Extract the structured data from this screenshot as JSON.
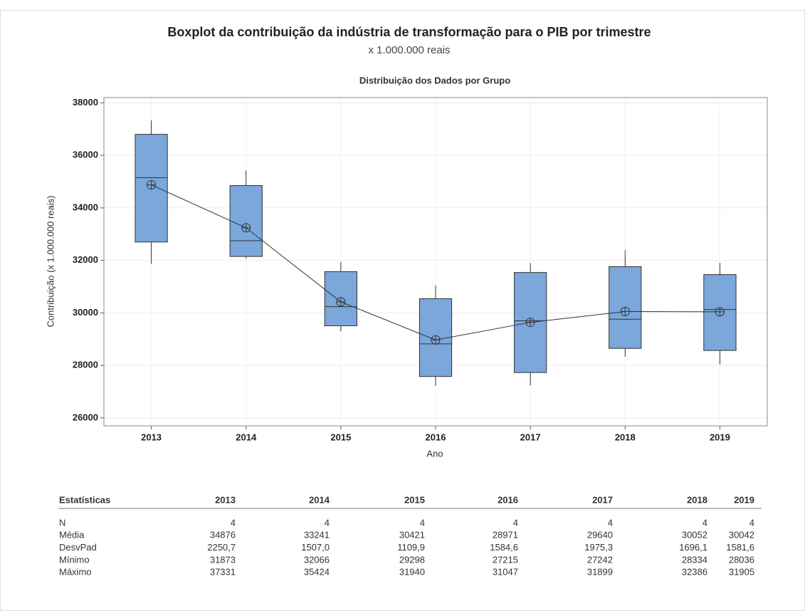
{
  "chart_data": {
    "type": "box",
    "title": "Boxplot da contribuição da indústria de transformação para o PIB por trimestre",
    "subtitle": "x 1.000.000 reais",
    "plot_title": "Distribuição dos Dados por Grupo",
    "x_label": "Ano",
    "y_label": "Contribuição (x 1.000.000 reais)",
    "categories": [
      "2013",
      "2014",
      "2015",
      "2016",
      "2017",
      "2018",
      "2019"
    ],
    "min": [
      31873,
      32066,
      29298,
      27215,
      27242,
      28334,
      28036
    ],
    "q1": [
      32700,
      32150,
      29510,
      27580,
      27730,
      28650,
      28570
    ],
    "median": [
      35150,
      32750,
      30240,
      28820,
      29700,
      29760,
      30130
    ],
    "q3": [
      36800,
      34850,
      31570,
      30540,
      31540,
      31760,
      31460
    ],
    "max": [
      37331,
      35424,
      31940,
      31047,
      31899,
      32386,
      31905
    ],
    "mean": [
      34876,
      33241,
      30421,
      28971,
      29640,
      30052,
      30042
    ],
    "color": "#7ba7da",
    "ylim": [
      25700,
      38200
    ],
    "yticks": [
      26000,
      28000,
      30000,
      32000,
      34000,
      36000,
      38000
    ],
    "grid": true
  },
  "table": {
    "header": [
      "Estatísticas",
      "2013",
      "2014",
      "2015",
      "2016",
      "2017",
      "2018",
      "2019"
    ],
    "rows": [
      [
        "N",
        "4",
        "4",
        "4",
        "4",
        "4",
        "4",
        "4"
      ],
      [
        "Média",
        "34876",
        "33241",
        "30421",
        "28971",
        "29640",
        "30052",
        "30042"
      ],
      [
        "DesvPad",
        "2250,7",
        "1507,0",
        "1109,9",
        "1584,6",
        "1975,3",
        "1696,1",
        "1581,6"
      ],
      [
        "Mínimo",
        "31873",
        "32066",
        "29298",
        "27215",
        "27242",
        "28334",
        "28036"
      ],
      [
        "Máximo",
        "37331",
        "35424",
        "31940",
        "31047",
        "31899",
        "32386",
        "31905"
      ]
    ]
  }
}
